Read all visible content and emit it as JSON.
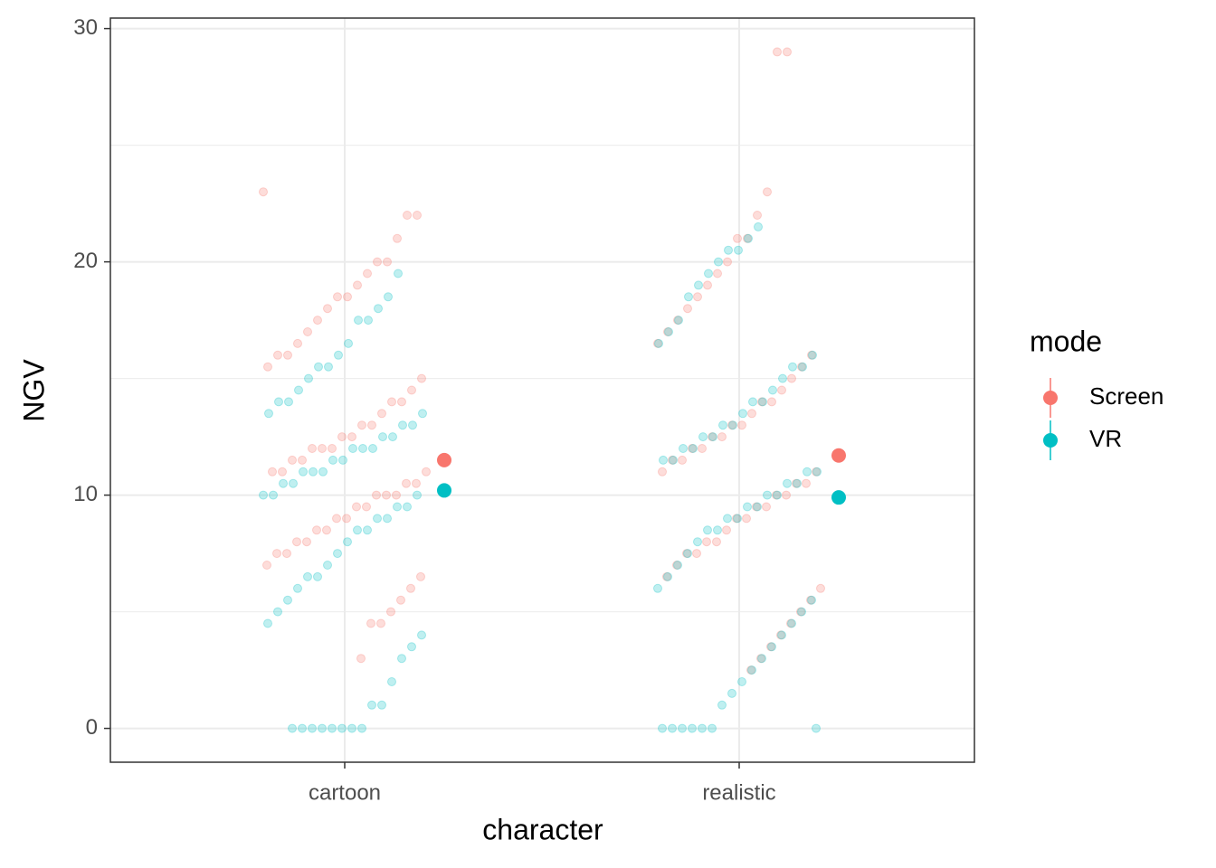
{
  "chart_data": {
    "type": "scatter",
    "x_label": "character",
    "y_label": "NGV",
    "categories": [
      "cartoon",
      "realistic"
    ],
    "ylim": [
      -1.45,
      30.45
    ],
    "yticks": [
      0,
      10,
      20,
      30
    ],
    "grid": true,
    "legend_title": "mode",
    "legend_position": "right",
    "series": [
      {
        "name": "Screen",
        "color": "#F8766D",
        "values": [
          [
            23,
            22,
            22,
            21,
            20,
            20,
            19.5,
            19,
            18.5,
            18.5,
            18,
            17.5,
            17,
            16.5,
            16,
            16,
            15.5,
            15,
            14.5,
            14,
            14,
            13.5,
            13,
            13,
            12.5,
            12.5,
            12,
            12,
            12,
            11.5,
            11.5,
            11,
            11,
            11,
            10.5,
            10.5,
            10,
            10,
            10,
            9.5,
            9.5,
            9,
            9,
            8.5,
            8.5,
            8,
            8,
            7.5,
            7.5,
            7,
            6.5,
            6,
            5.5,
            5,
            4.5,
            4.5,
            3
          ],
          [
            29,
            29,
            23,
            22,
            21,
            21,
            20,
            19.5,
            19,
            18.5,
            18,
            17.5,
            17,
            16.5,
            16,
            15.5,
            15,
            14.5,
            14,
            14,
            13.5,
            13,
            13,
            12.5,
            12.5,
            12,
            12,
            11.5,
            11.5,
            11,
            11,
            10.5,
            10.5,
            10,
            10,
            9.5,
            9.5,
            9,
            9,
            8.5,
            8,
            8,
            7.5,
            7.5,
            7,
            6.5,
            6,
            5.5,
            5,
            4.5,
            4,
            3.5,
            3,
            2.5
          ]
        ],
        "mean": [
          11.5,
          11.7
        ]
      },
      {
        "name": "VR",
        "color": "#00BFC4",
        "values": [
          [
            19.5,
            18.5,
            18,
            17.5,
            17.5,
            16.5,
            16,
            15.5,
            15.5,
            15,
            14.5,
            14,
            14,
            13.5,
            13.5,
            13,
            13,
            12.5,
            12.5,
            12,
            12,
            12,
            11.5,
            11.5,
            11,
            11,
            11,
            10.5,
            10.5,
            10,
            10,
            10,
            9.5,
            9.5,
            9,
            9,
            8.5,
            8.5,
            8,
            7.5,
            7,
            6.5,
            6.5,
            6,
            5.5,
            5,
            4.5,
            4,
            3.5,
            3,
            2,
            1,
            1,
            0,
            0,
            0,
            0,
            0,
            0,
            0,
            0
          ],
          [
            21.5,
            21,
            20.5,
            20.5,
            20,
            19.5,
            19,
            18.5,
            17.5,
            17,
            16.5,
            16,
            15.5,
            15.5,
            15,
            14.5,
            14,
            14,
            13.5,
            13,
            13,
            12.5,
            12.5,
            12,
            12,
            11.5,
            11.5,
            11,
            11,
            10.5,
            10.5,
            10,
            10,
            9.5,
            9.5,
            9,
            9,
            8.5,
            8.5,
            8,
            7.5,
            7,
            6.5,
            6,
            5.5,
            5,
            4.5,
            4,
            3.5,
            3,
            2.5,
            2,
            1.5,
            1,
            0,
            0,
            0,
            0,
            0,
            0,
            0
          ]
        ],
        "mean": [
          10.2,
          9.9
        ]
      }
    ]
  }
}
